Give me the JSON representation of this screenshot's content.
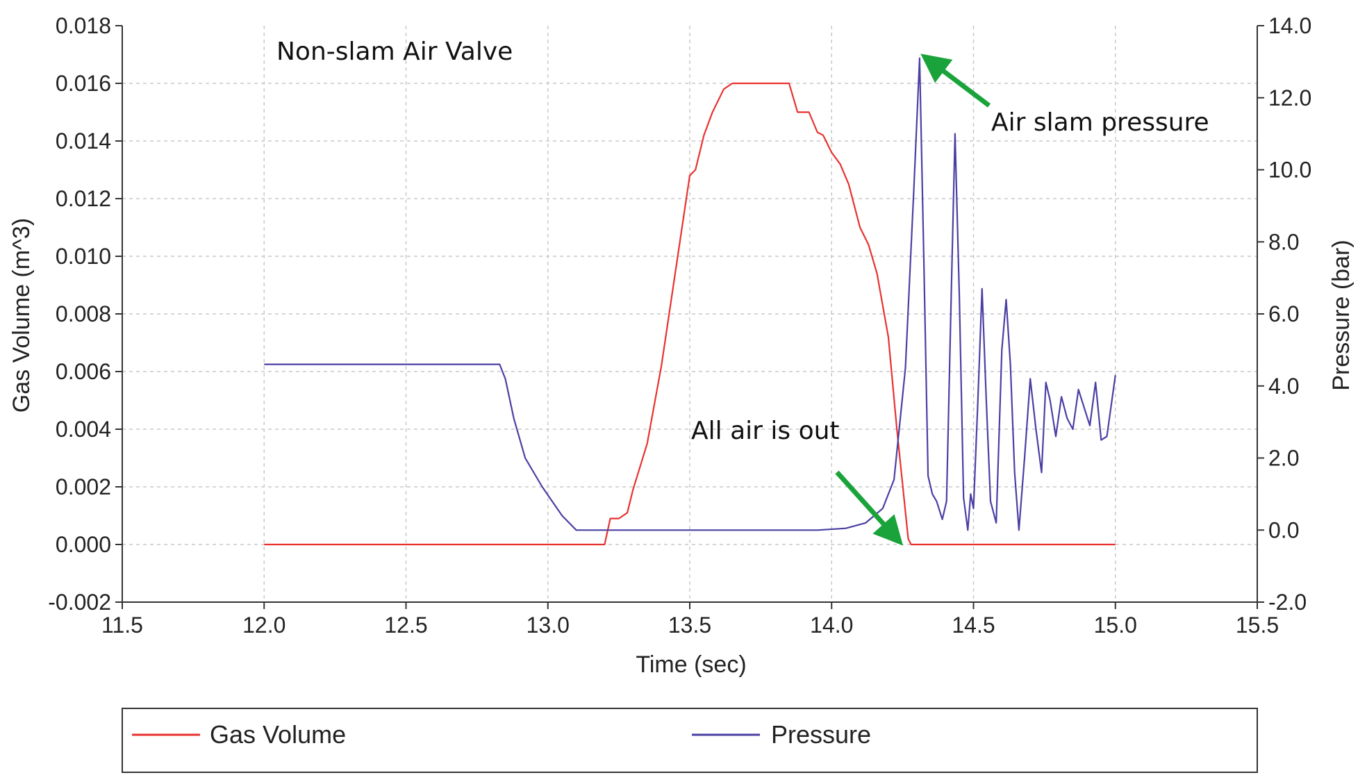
{
  "chart_data": {
    "type": "line",
    "title": "",
    "xlabel": "Time (sec)",
    "ylabel": "Gas Volume (m^3)",
    "y2label": "Pressure (bar)",
    "xlim": [
      11.5,
      15.5
    ],
    "ylim": [
      -0.002,
      0.018
    ],
    "y2lim": [
      -2.0,
      14.0
    ],
    "x_ticks": [
      "11.5",
      "12.0",
      "12.5",
      "13.0",
      "13.5",
      "14.0",
      "14.5",
      "15.0",
      "15.5"
    ],
    "y_ticks": [
      "-0.002",
      "0.000",
      "0.002",
      "0.004",
      "0.006",
      "0.008",
      "0.010",
      "0.012",
      "0.014",
      "0.016",
      "0.018"
    ],
    "y2_ticks": [
      "-2.0",
      "0.0",
      "2.0",
      "4.0",
      "6.0",
      "8.0",
      "10.0",
      "12.0",
      "14.0"
    ],
    "grid": true,
    "legend_position": "bottom",
    "series": [
      {
        "name": "Gas Volume",
        "axis": "left",
        "color": "#e8312f",
        "x": [
          12.0,
          13.0,
          13.2,
          13.22,
          13.25,
          13.28,
          13.3,
          13.35,
          13.4,
          13.45,
          13.5,
          13.52,
          13.55,
          13.58,
          13.62,
          13.65,
          13.75,
          13.8,
          13.85,
          13.88,
          13.92,
          13.95,
          13.97,
          14.0,
          14.03,
          14.06,
          14.1,
          14.13,
          14.16,
          14.2,
          14.23,
          14.27,
          14.28,
          14.35,
          14.5,
          14.7,
          15.0
        ],
        "values": [
          0.0,
          0.0,
          0.0,
          0.0009,
          0.0009,
          0.0011,
          0.0019,
          0.0035,
          0.0062,
          0.0095,
          0.0128,
          0.013,
          0.0142,
          0.015,
          0.0158,
          0.016,
          0.016,
          0.016,
          0.016,
          0.015,
          0.015,
          0.0143,
          0.0142,
          0.0136,
          0.0132,
          0.0125,
          0.011,
          0.0104,
          0.0094,
          0.0072,
          0.004,
          0.0002,
          0.0,
          0.0,
          0.0,
          0.0,
          0.0
        ]
      },
      {
        "name": "Pressure",
        "axis": "right",
        "color": "#4a3fa3",
        "x": [
          12.0,
          12.5,
          12.83,
          12.85,
          12.88,
          12.92,
          12.98,
          13.05,
          13.1,
          13.12,
          13.5,
          13.95,
          14.05,
          14.12,
          14.18,
          14.22,
          14.26,
          14.29,
          14.31,
          14.325,
          14.34,
          14.355,
          14.37,
          14.39,
          14.405,
          14.42,
          14.435,
          14.45,
          14.465,
          14.48,
          14.49,
          14.5,
          14.515,
          14.53,
          14.545,
          14.56,
          14.58,
          14.6,
          14.615,
          14.63,
          14.645,
          14.66,
          14.68,
          14.7,
          14.72,
          14.74,
          14.755,
          14.77,
          14.79,
          14.81,
          14.83,
          14.85,
          14.87,
          14.89,
          14.91,
          14.93,
          14.95,
          14.97,
          15.0
        ],
        "values": [
          4.6,
          4.6,
          4.6,
          4.2,
          3.1,
          2.0,
          1.2,
          0.4,
          0.0,
          0.0,
          0.0,
          0.0,
          0.05,
          0.2,
          0.6,
          1.4,
          4.5,
          9.5,
          13.1,
          7.5,
          1.5,
          1.0,
          0.8,
          0.3,
          0.8,
          6.0,
          11.0,
          6.5,
          0.9,
          0.0,
          1.0,
          0.6,
          3.5,
          6.7,
          3.6,
          0.8,
          0.2,
          5.0,
          6.4,
          4.6,
          1.6,
          0.0,
          2.0,
          4.2,
          2.8,
          1.6,
          4.1,
          3.6,
          2.6,
          3.7,
          3.1,
          2.8,
          3.9,
          3.4,
          2.9,
          4.1,
          2.5,
          2.6,
          4.3
        ]
      }
    ],
    "annotations": [
      {
        "text": "Non-slam Air Valve"
      },
      {
        "text": "Air slam pressure"
      },
      {
        "text": "All air is out"
      }
    ]
  }
}
